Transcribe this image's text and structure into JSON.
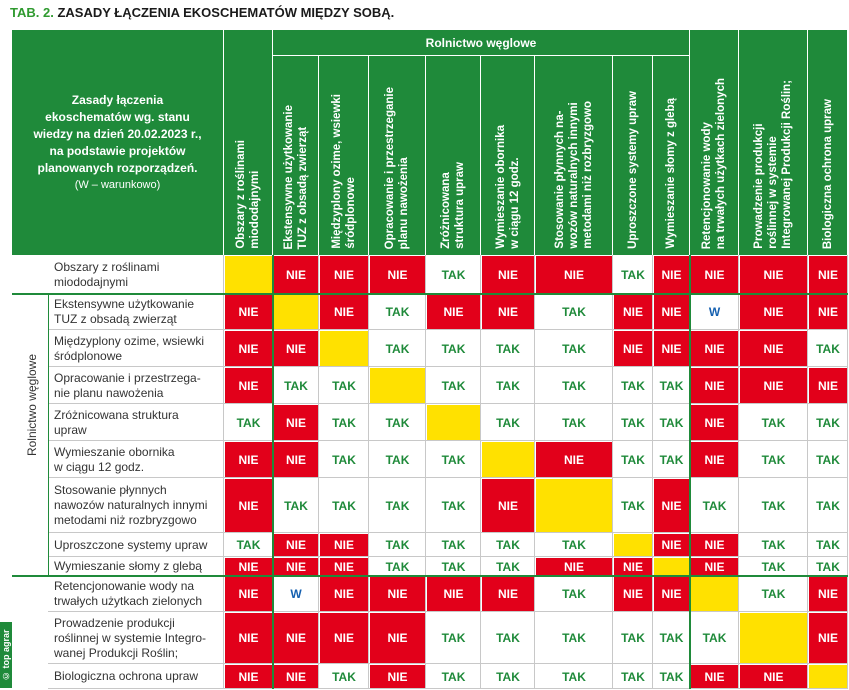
{
  "title": {
    "prefix": "TAB. 2.",
    "text": "ZASADY ŁĄCZENIA EKOSCHEMATÓW MIĘDZY SOBĄ."
  },
  "intro": {
    "lines": [
      "Zasady łączenia",
      "ekoschematów wg. stanu",
      "wiedzy na dzień 20.02.2023 r.,",
      "na podstawie projektów",
      "planowanych rozporządzeń."
    ],
    "note": "(W – warunkowo)"
  },
  "group_header": "Rolnictwo węglowe",
  "side_label": "Rolnictwo węglowe",
  "logo": "© top agrar",
  "columns": [
    [
      "Obszary z roślinami",
      "miododajnymi"
    ],
    [
      "Ekstensywne użytkowanie",
      "TUZ z obsadą zwierząt"
    ],
    [
      "Międzyplony ozime, wsiewki",
      "śródplonowe"
    ],
    [
      "Opracowanie i przestrzeganie",
      "planu nawożenia"
    ],
    [
      "Zróżnicowana",
      "struktura upraw"
    ],
    [
      "Wymieszanie obornika",
      "w ciągu 12 godz."
    ],
    [
      "Stosowanie płynnych na-",
      "wozów naturalnych innymi",
      "metodami niż rozbryzgowo"
    ],
    [
      "Uproszczone systemy upraw"
    ],
    [
      "Wymieszanie słomy z glebą"
    ],
    [
      "Retencjonowanie wody",
      "na trwałych użytkach zielonych"
    ],
    [
      "Prowadzenie produkcji",
      "roślinnej w systemie",
      "Integrowanej Produkcji Roślin;"
    ],
    [
      "Biologiczna ochrona upraw"
    ]
  ],
  "rows": [
    {
      "label": [
        "Obszary z roślinami",
        "miododajnymi"
      ],
      "values": [
        "",
        "NIE",
        "NIE",
        "NIE",
        "TAK",
        "NIE",
        "NIE",
        "TAK",
        "NIE",
        "NIE",
        "NIE",
        "NIE"
      ]
    },
    {
      "label": [
        "Ekstensywne użytkowanie",
        "TUZ z obsadą zwierząt"
      ],
      "values": [
        "NIE",
        "",
        "NIE",
        "TAK",
        "NIE",
        "NIE",
        "TAK",
        "NIE",
        "NIE",
        "W",
        "NIE",
        "NIE"
      ]
    },
    {
      "label": [
        "Międzyplony ozime, wsiewki",
        "śródplonowe"
      ],
      "values": [
        "NIE",
        "NIE",
        "",
        "TAK",
        "TAK",
        "TAK",
        "TAK",
        "NIE",
        "NIE",
        "NIE",
        "NIE",
        "TAK"
      ]
    },
    {
      "label": [
        "Opracowanie i przestrzega-",
        "nie planu nawożenia"
      ],
      "values": [
        "NIE",
        "TAK",
        "TAK",
        "",
        "TAK",
        "TAK",
        "TAK",
        "TAK",
        "TAK",
        "NIE",
        "NIE",
        "NIE"
      ]
    },
    {
      "label": [
        "Zróżnicowana struktura",
        "upraw"
      ],
      "values": [
        "TAK",
        "NIE",
        "TAK",
        "TAK",
        "",
        "TAK",
        "TAK",
        "TAK",
        "TAK",
        "NIE",
        "TAK",
        "TAK"
      ]
    },
    {
      "label": [
        "Wymieszanie obornika",
        "w ciągu 12 godz."
      ],
      "values": [
        "NIE",
        "NIE",
        "TAK",
        "TAK",
        "TAK",
        "",
        "NIE",
        "TAK",
        "TAK",
        "NIE",
        "TAK",
        "TAK"
      ]
    },
    {
      "label": [
        "Stosowanie płynnych",
        "nawozów naturalnych innymi",
        "metodami niż rozbryzgowo"
      ],
      "values": [
        "NIE",
        "TAK",
        "TAK",
        "TAK",
        "TAK",
        "NIE",
        "",
        "TAK",
        "NIE",
        "TAK",
        "TAK",
        "TAK"
      ]
    },
    {
      "label": [
        "Uproszczone systemy upraw"
      ],
      "values": [
        "TAK",
        "NIE",
        "NIE",
        "TAK",
        "TAK",
        "TAK",
        "TAK",
        "",
        "NIE",
        "NIE",
        "TAK",
        "TAK"
      ]
    },
    {
      "label": [
        "Wymieszanie słomy z glebą"
      ],
      "values": [
        "NIE",
        "NIE",
        "NIE",
        "TAK",
        "TAK",
        "TAK",
        "NIE",
        "NIE",
        "",
        "NIE",
        "TAK",
        "TAK"
      ]
    },
    {
      "label": [
        "Retencjonowanie wody na",
        "trwałych użytkach zielonych"
      ],
      "values": [
        "NIE",
        "W",
        "NIE",
        "NIE",
        "NIE",
        "NIE",
        "TAK",
        "NIE",
        "NIE",
        "",
        "TAK",
        "NIE"
      ]
    },
    {
      "label": [
        "Prowadzenie produkcji",
        "roślinnej w systemie Integro-",
        "wanej Produkcji Roślin;"
      ],
      "values": [
        "NIE",
        "NIE",
        "NIE",
        "NIE",
        "TAK",
        "TAK",
        "TAK",
        "TAK",
        "TAK",
        "TAK",
        "",
        "NIE"
      ]
    },
    {
      "label": [
        "Biologiczna ochrona upraw"
      ],
      "values": [
        "NIE",
        "NIE",
        "TAK",
        "NIE",
        "TAK",
        "TAK",
        "TAK",
        "TAK",
        "TAK",
        "NIE",
        "NIE",
        ""
      ]
    }
  ]
}
